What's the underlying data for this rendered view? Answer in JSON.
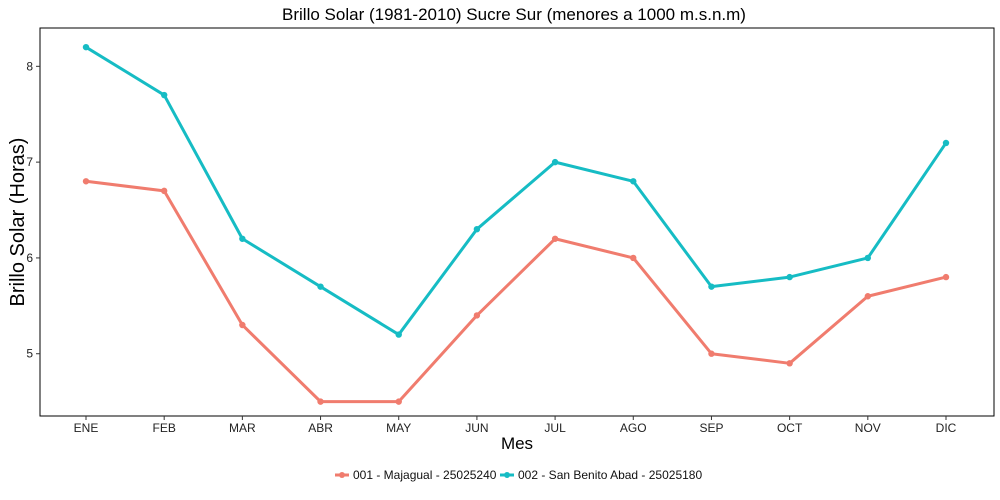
{
  "chart_data": {
    "type": "line",
    "title": "Brillo Solar (1981-2010) Sucre Sur (menores a 1000 m.s.n.m)",
    "xlabel": "Mes",
    "ylabel": "Brillo Solar (Horas)",
    "categories": [
      "ENE",
      "FEB",
      "MAR",
      "ABR",
      "MAY",
      "JUN",
      "JUL",
      "AGO",
      "SEP",
      "OCT",
      "NOV",
      "DIC"
    ],
    "ylim": [
      4.35,
      8.4
    ],
    "yticks": [
      5,
      6,
      7,
      8
    ],
    "grid": false,
    "legend_position": "bottom",
    "series": [
      {
        "name": "001 - Majagual - 25025240",
        "color": "#F07C6E",
        "values": [
          6.8,
          6.7,
          5.3,
          4.5,
          4.5,
          5.4,
          6.2,
          6.0,
          5.0,
          4.9,
          5.6,
          5.8
        ]
      },
      {
        "name": "002 - San Benito Abad - 25025180",
        "color": "#16BCC4",
        "values": [
          8.2,
          7.7,
          6.2,
          5.7,
          5.2,
          6.3,
          7.0,
          6.8,
          5.7,
          5.8,
          6.0,
          7.2
        ]
      }
    ]
  }
}
